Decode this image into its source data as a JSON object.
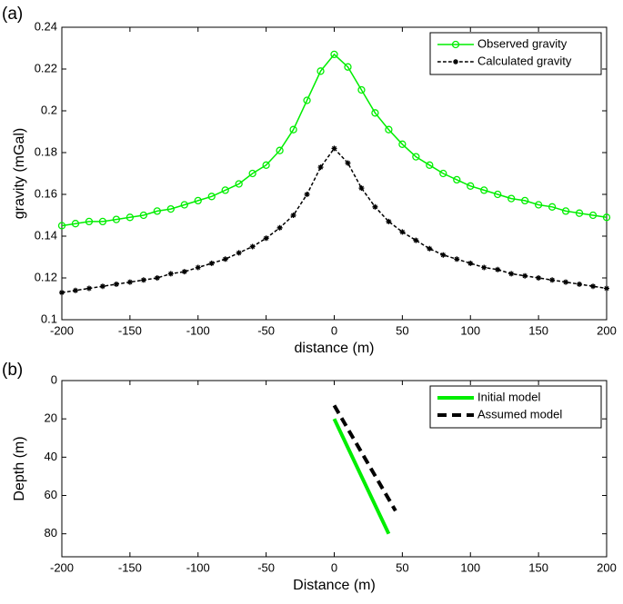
{
  "chart_data": [
    {
      "type": "line",
      "panel_label": "(a)",
      "x_label": "distance (m)",
      "y_label": "gravity (mGal)",
      "xlim": [
        -200,
        200
      ],
      "xticks": [
        -200,
        -150,
        -100,
        -50,
        0,
        50,
        100,
        150,
        200
      ],
      "ylim": [
        0.1,
        0.24
      ],
      "yticks": [
        0.1,
        0.12,
        0.14,
        0.16,
        0.18,
        0.2,
        0.22,
        0.24
      ],
      "y_reversed": false,
      "legend": "upper right",
      "x": [
        -200,
        -190,
        -180,
        -170,
        -160,
        -150,
        -140,
        -130,
        -120,
        -110,
        -100,
        -90,
        -80,
        -70,
        -60,
        -50,
        -40,
        -30,
        -20,
        -10,
        0,
        10,
        20,
        30,
        40,
        50,
        60,
        70,
        80,
        90,
        100,
        110,
        120,
        130,
        140,
        150,
        160,
        170,
        180,
        190,
        200
      ],
      "series": [
        {
          "name": "Observed gravity",
          "color": "#00ee00",
          "marker": "o",
          "dash": false,
          "width": 1.5,
          "values": [
            0.145,
            0.146,
            0.147,
            0.147,
            0.148,
            0.149,
            0.15,
            0.152,
            0.153,
            0.155,
            0.157,
            0.159,
            0.162,
            0.165,
            0.17,
            0.174,
            0.181,
            0.191,
            0.205,
            0.219,
            0.227,
            0.221,
            0.21,
            0.199,
            0.191,
            0.184,
            0.178,
            0.174,
            0.17,
            0.167,
            0.164,
            0.162,
            0.16,
            0.158,
            0.157,
            0.155,
            0.154,
            0.152,
            0.151,
            0.15,
            0.149
          ]
        },
        {
          "name": "Calculated gravity",
          "color": "#000000",
          "marker": "*",
          "dash": true,
          "width": 1.5,
          "values": [
            0.113,
            0.114,
            0.115,
            0.116,
            0.117,
            0.118,
            0.119,
            0.12,
            0.122,
            0.123,
            0.125,
            0.127,
            0.129,
            0.132,
            0.135,
            0.139,
            0.144,
            0.15,
            0.16,
            0.173,
            0.182,
            0.175,
            0.163,
            0.154,
            0.147,
            0.142,
            0.138,
            0.134,
            0.131,
            0.129,
            0.127,
            0.125,
            0.124,
            0.122,
            0.121,
            0.12,
            0.119,
            0.118,
            0.117,
            0.116,
            0.115
          ]
        }
      ]
    },
    {
      "type": "line",
      "panel_label": "(b)",
      "x_label": "Distance (m)",
      "y_label": "Depth (m)",
      "xlim": [
        -200,
        200
      ],
      "xticks": [
        -200,
        -150,
        -100,
        -50,
        0,
        50,
        100,
        150,
        200
      ],
      "ylim": [
        0,
        92
      ],
      "yticks": [
        0,
        20,
        40,
        60,
        80
      ],
      "y_reversed": true,
      "legend": "upper right",
      "series": [
        {
          "name": "Initial model",
          "color": "#00ee00",
          "marker": "none",
          "dash": false,
          "width": 4,
          "x": [
            0,
            40
          ],
          "values": [
            20,
            80
          ]
        },
        {
          "name": "Assumed model",
          "color": "#000000",
          "marker": "none",
          "dash": true,
          "width": 4,
          "x": [
            0,
            45
          ],
          "values": [
            13,
            68
          ]
        }
      ]
    }
  ]
}
